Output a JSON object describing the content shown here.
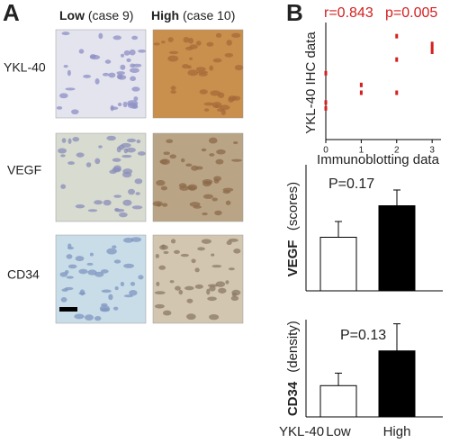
{
  "panel_labels": [
    "A",
    "B"
  ],
  "panel_a": {
    "columns": [
      {
        "strong": "Low",
        "rest": "(case  9)"
      },
      {
        "strong": "High",
        "rest": "(case 10)"
      }
    ],
    "rows": [
      "YKL-40",
      "VEGF",
      "CD34"
    ]
  },
  "chart_data": [
    {
      "type": "scatter",
      "xlabel": "Immunoblotting data",
      "ylabel": "YKL-40 IHC data",
      "annotations": [
        "r=0.843",
        "p=0.005"
      ],
      "color": "#d42020",
      "x": [
        0,
        0,
        0,
        1,
        1,
        2,
        2,
        2,
        3,
        3,
        3
      ],
      "y": [
        1.6,
        1.9,
        3.4,
        2.8,
        2.4,
        5.3,
        4.1,
        2.4,
        4.9,
        4.7,
        4.5
      ],
      "xlim": [
        0,
        3.25
      ],
      "xticks": [
        0,
        1,
        2,
        3
      ],
      "ylim": [
        0,
        6
      ]
    },
    {
      "type": "bar",
      "ylabel": "VEGF",
      "ylabel_unit": "(scores)",
      "annotation": "P=0.17",
      "values": [
        1.7,
        2.7
      ],
      "errors": [
        0.5,
        0.5
      ],
      "colors": [
        "#ffffff",
        "#000000"
      ],
      "ylim": [
        0,
        4
      ]
    },
    {
      "type": "bar",
      "ylabel": "CD34",
      "ylabel_unit": "(density)",
      "annotation": "P=0.13",
      "group_label": "YKL-40",
      "categories": [
        "Low",
        "High"
      ],
      "values": [
        4.5,
        9.5
      ],
      "errors": [
        1.8,
        3.9
      ],
      "colors": [
        "#ffffff",
        "#000000"
      ],
      "ylim": [
        0,
        14
      ]
    }
  ]
}
